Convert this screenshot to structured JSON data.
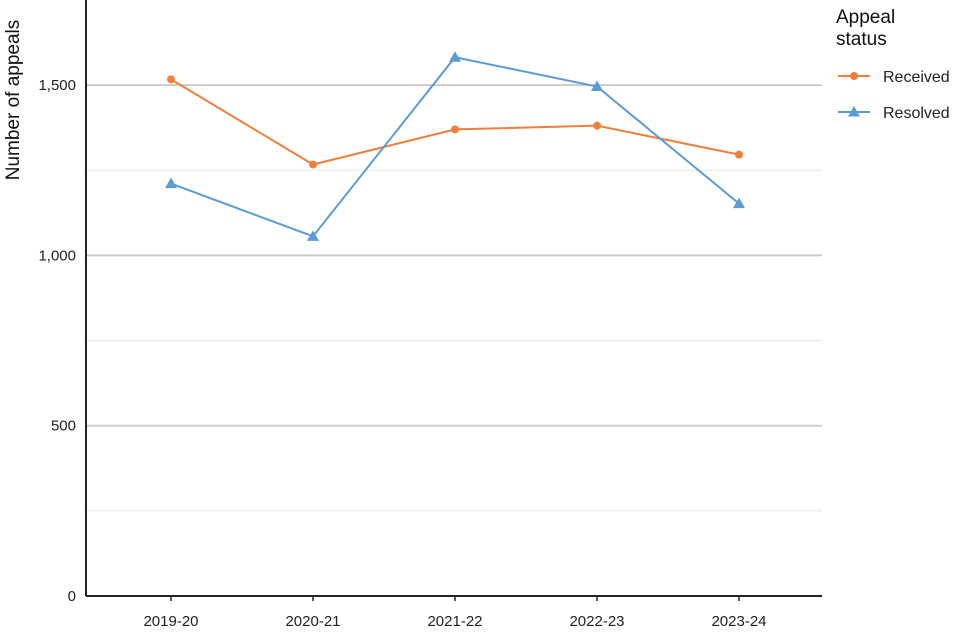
{
  "chart_data": {
    "type": "line",
    "title": "",
    "xlabel": "",
    "ylabel": "Number of appeals",
    "categories": [
      "2019-20",
      "2020-21",
      "2021-22",
      "2022-23",
      "2023-24"
    ],
    "ylim": [
      0,
      1750
    ],
    "yticks": [
      0,
      500,
      1000,
      1500
    ],
    "ytick_labels": [
      "0",
      "500",
      "1,000",
      "1,500"
    ],
    "grid": true,
    "legend": {
      "title_lines": [
        "Appeal",
        "status"
      ],
      "placement": "right-top"
    },
    "series": [
      {
        "name": "Received",
        "color": "#F07F3C",
        "marker": "circle",
        "values": [
          1517,
          1267,
          1370,
          1381,
          1296
        ]
      },
      {
        "name": "Resolved",
        "color": "#5B9BD5",
        "marker": "triangle",
        "values": [
          1211,
          1056,
          1582,
          1496,
          1152
        ]
      }
    ]
  }
}
